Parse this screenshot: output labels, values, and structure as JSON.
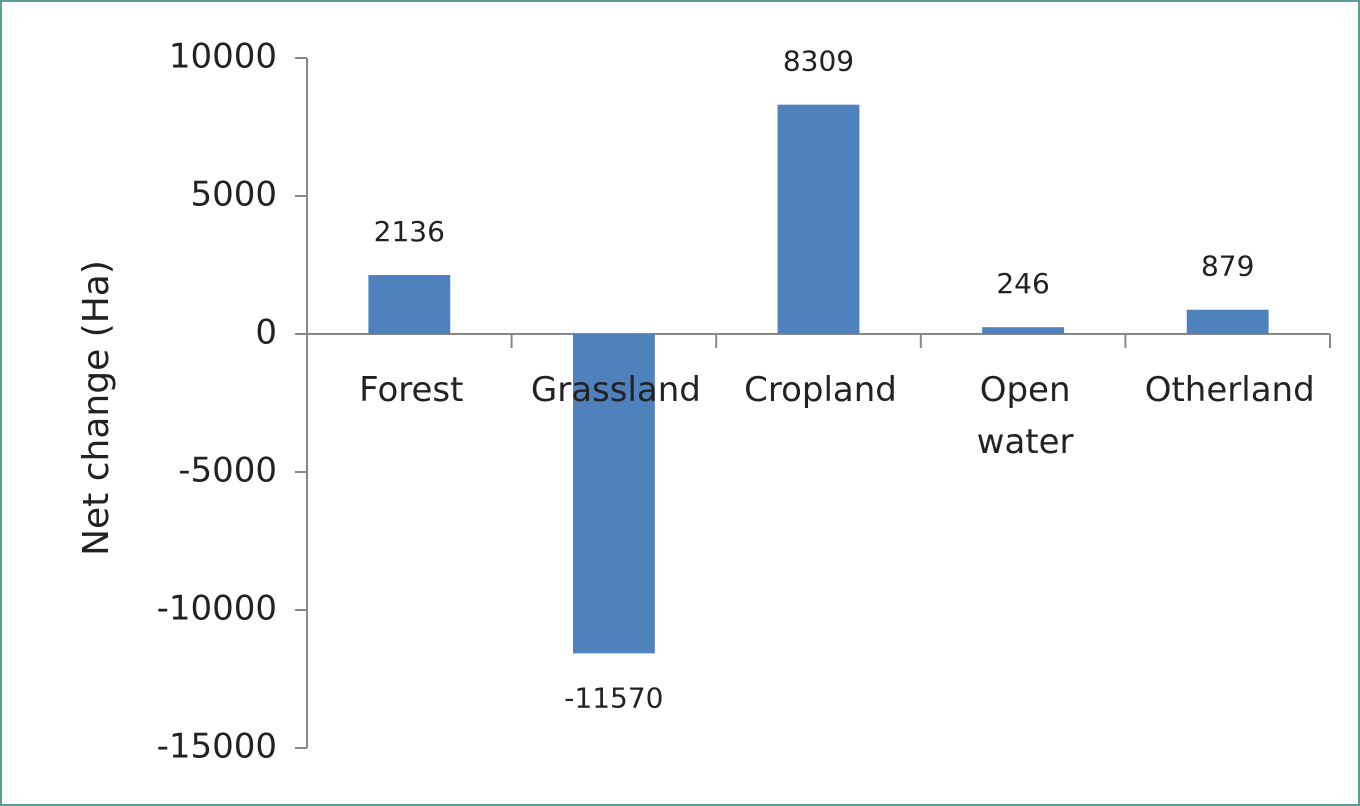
{
  "chart_data": {
    "type": "bar",
    "y_axis_label": "Net change (Ha)",
    "categories": [
      "Forest",
      "Grassland",
      "Cropland",
      "Open water",
      "Otherland"
    ],
    "values": [
      2136,
      -11570,
      8309,
      246,
      879
    ],
    "color": "#4f81bd",
    "ylim": [
      -15000,
      10000
    ],
    "yticks": [
      -15000,
      -10000,
      -5000,
      0,
      5000,
      10000
    ],
    "grid": false
  }
}
